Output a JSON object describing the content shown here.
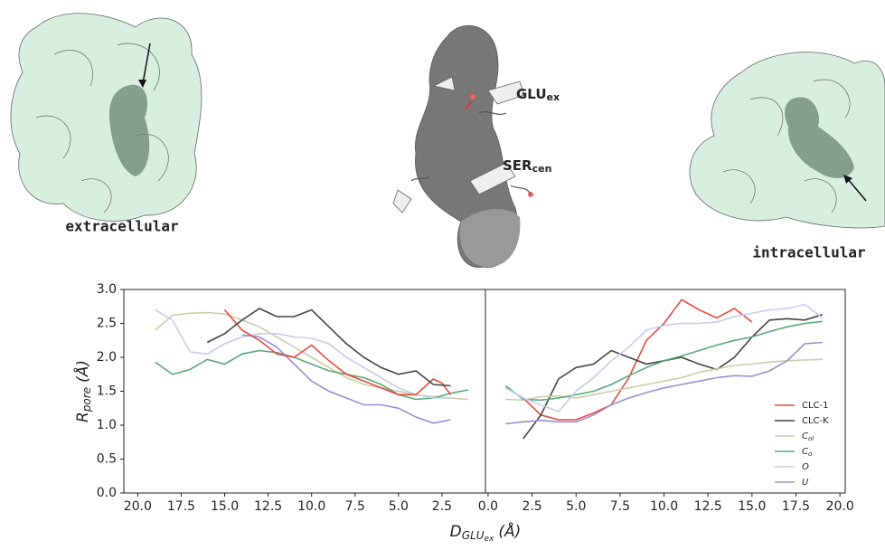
{
  "figure": {
    "left_label": "extracellular",
    "right_label": "intracellular",
    "glu": {
      "main": "GLU",
      "sub": "ex"
    },
    "ser": {
      "main": "SER",
      "sub": "cen"
    }
  },
  "chart_data": [
    {
      "type": "line",
      "y_label": {
        "main": "R",
        "sub": "pore",
        "unit": "(Å)"
      },
      "xlim": [
        20.8,
        0
      ],
      "ylim": [
        0,
        3.0
      ],
      "xticks": [
        {
          "value": 20,
          "label": "20.0"
        },
        {
          "value": 17.5,
          "label": "17.5"
        },
        {
          "value": 15,
          "label": "15.0"
        },
        {
          "value": 12.5,
          "label": "12.5"
        },
        {
          "value": 10,
          "label": "10.0"
        },
        {
          "value": 7.5,
          "label": "7.5"
        },
        {
          "value": 5,
          "label": "5.0"
        },
        {
          "value": 2.5,
          "label": "2.5"
        }
      ],
      "yticks": [
        {
          "value": 0,
          "label": "0.0"
        },
        {
          "value": 0.5,
          "label": "0.5"
        },
        {
          "value": 1,
          "label": "1.0"
        },
        {
          "value": 1.5,
          "label": "1.5"
        },
        {
          "value": 2,
          "label": "2.0"
        },
        {
          "value": 2.5,
          "label": "2.5"
        },
        {
          "value": 3,
          "label": "3.0"
        }
      ],
      "series": [
        {
          "color": "#c9cfa8",
          "x": [
            19,
            18,
            17,
            16,
            15,
            14,
            13,
            12,
            11,
            10,
            9,
            8,
            7,
            6,
            5,
            4,
            3,
            2,
            1
          ],
          "values": [
            2.4,
            2.62,
            2.65,
            2.66,
            2.64,
            2.55,
            2.45,
            2.3,
            2.15,
            2.0,
            1.85,
            1.7,
            1.6,
            1.55,
            1.5,
            1.45,
            1.42,
            1.4,
            1.38
          ]
        },
        {
          "color": "#5aa87a",
          "x": [
            19,
            18,
            17,
            16,
            15,
            14,
            13,
            12,
            11,
            10,
            9,
            8,
            7,
            6,
            5,
            4,
            3,
            2,
            1
          ],
          "values": [
            1.93,
            1.75,
            1.82,
            1.97,
            1.9,
            2.05,
            2.1,
            2.07,
            2.0,
            1.9,
            1.8,
            1.75,
            1.7,
            1.6,
            1.45,
            1.38,
            1.4,
            1.47,
            1.52
          ]
        },
        {
          "color": "#c3cef0",
          "x": [
            19,
            18,
            17,
            16,
            15,
            14,
            13,
            12,
            11,
            10,
            9,
            8,
            7,
            6,
            5,
            4,
            3,
            2
          ],
          "values": [
            2.7,
            2.55,
            2.08,
            2.05,
            2.2,
            2.3,
            2.35,
            2.35,
            2.3,
            2.28,
            2.2,
            2.0,
            1.85,
            1.7,
            1.55,
            1.45,
            1.4,
            1.4
          ]
        },
        {
          "color": "#9a8fd0",
          "x": [
            14,
            13,
            12,
            11,
            10,
            9,
            8,
            7,
            6,
            5,
            4,
            3,
            2
          ],
          "values": [
            2.33,
            2.3,
            2.15,
            1.9,
            1.65,
            1.5,
            1.4,
            1.3,
            1.3,
            1.25,
            1.12,
            1.03,
            1.08
          ]
        },
        {
          "color": "#e8493f",
          "x": [
            15,
            14,
            13,
            12,
            11,
            10,
            9,
            8,
            7,
            6,
            5,
            4,
            3,
            2.5,
            2
          ],
          "values": [
            2.7,
            2.4,
            2.25,
            2.05,
            2.0,
            2.18,
            1.95,
            1.75,
            1.65,
            1.55,
            1.45,
            1.45,
            1.68,
            1.62,
            1.45
          ]
        },
        {
          "color": "#444444",
          "x": [
            16,
            15,
            14,
            13,
            12,
            11,
            10,
            9,
            8,
            7,
            6,
            5,
            4,
            3,
            2
          ],
          "values": [
            2.22,
            2.35,
            2.55,
            2.72,
            2.6,
            2.6,
            2.7,
            2.45,
            2.2,
            2.0,
            1.85,
            1.75,
            1.8,
            1.6,
            1.58
          ]
        }
      ]
    },
    {
      "type": "line",
      "x_label": {
        "main": "D",
        "sub": "GLU",
        "subsub": "ex",
        "unit": "(Å)"
      },
      "xlim": [
        -0.15,
        20.3
      ],
      "ylim": [
        0,
        3.0
      ],
      "legend": "lower right",
      "xticks": [
        {
          "value": 0,
          "label": "0.0"
        },
        {
          "value": 2.5,
          "label": "2.5"
        },
        {
          "value": 5,
          "label": "5.0"
        },
        {
          "value": 7.5,
          "label": "7.5"
        },
        {
          "value": 10,
          "label": "10.0"
        },
        {
          "value": 12.5,
          "label": "12.5"
        },
        {
          "value": 15,
          "label": "15.0"
        },
        {
          "value": 17.5,
          "label": "17.5"
        },
        {
          "value": 20,
          "label": "20.0"
        }
      ],
      "series": [
        {
          "name": "CLC-1",
          "color": "#e8493f",
          "x": [
            1,
            2,
            3,
            4,
            5,
            6,
            7,
            8,
            9,
            10,
            11,
            12,
            13,
            14,
            15
          ],
          "values": [
            1.55,
            1.4,
            1.15,
            1.08,
            1.08,
            1.18,
            1.3,
            1.7,
            2.25,
            2.5,
            2.85,
            2.7,
            2.58,
            2.72,
            2.52
          ]
        },
        {
          "name": "CLC-K",
          "color": "#444444",
          "x": [
            2,
            3,
            4,
            5,
            6,
            7,
            8,
            9,
            10,
            11,
            12,
            13,
            14,
            15,
            16,
            17,
            18,
            19
          ],
          "values": [
            0.8,
            1.15,
            1.68,
            1.85,
            1.9,
            2.1,
            2.0,
            1.9,
            1.95,
            2.0,
            1.9,
            1.82,
            2.0,
            2.3,
            2.55,
            2.57,
            2.55,
            2.63
          ]
        },
        {
          "name": "C",
          "name_sub": "ol",
          "italic": true,
          "color": "#c9cfa8",
          "x": [
            1,
            2,
            3,
            4,
            5,
            6,
            7,
            8,
            9,
            10,
            11,
            12,
            13,
            14,
            15,
            16,
            17,
            18,
            19
          ],
          "values": [
            1.38,
            1.37,
            1.42,
            1.43,
            1.4,
            1.45,
            1.5,
            1.55,
            1.6,
            1.65,
            1.7,
            1.78,
            1.83,
            1.88,
            1.9,
            1.93,
            1.95,
            1.96,
            1.97
          ]
        },
        {
          "name": "C",
          "name_sub": "o",
          "italic": true,
          "color": "#5aa87a",
          "x": [
            1,
            2,
            3,
            4,
            5,
            6,
            7,
            8,
            9,
            10,
            11,
            12,
            13,
            14,
            15,
            16,
            17,
            18,
            19
          ],
          "values": [
            1.58,
            1.38,
            1.37,
            1.4,
            1.45,
            1.5,
            1.6,
            1.73,
            1.85,
            1.95,
            2.02,
            2.1,
            2.18,
            2.25,
            2.3,
            2.38,
            2.45,
            2.5,
            2.53
          ]
        },
        {
          "name": "O",
          "italic": true,
          "color": "#c3cef0",
          "x": [
            1,
            2,
            3,
            4,
            5,
            6,
            7,
            8,
            9,
            10,
            11,
            12,
            13,
            14,
            15,
            16,
            17,
            18,
            19
          ],
          "values": [
            1.55,
            1.4,
            1.3,
            1.2,
            1.5,
            1.7,
            1.95,
            2.15,
            2.4,
            2.47,
            2.5,
            2.5,
            2.52,
            2.6,
            2.65,
            2.7,
            2.72,
            2.78,
            2.58
          ]
        },
        {
          "name": "U",
          "italic": true,
          "color": "#9a8fd0",
          "x": [
            1,
            2,
            3,
            4,
            5,
            6,
            7,
            8,
            9,
            10,
            11,
            12,
            13,
            14,
            15,
            16,
            17,
            18,
            19
          ],
          "values": [
            1.02,
            1.05,
            1.07,
            1.05,
            1.05,
            1.15,
            1.3,
            1.4,
            1.48,
            1.55,
            1.6,
            1.65,
            1.7,
            1.73,
            1.72,
            1.8,
            1.95,
            2.2,
            2.22
          ]
        }
      ]
    }
  ]
}
